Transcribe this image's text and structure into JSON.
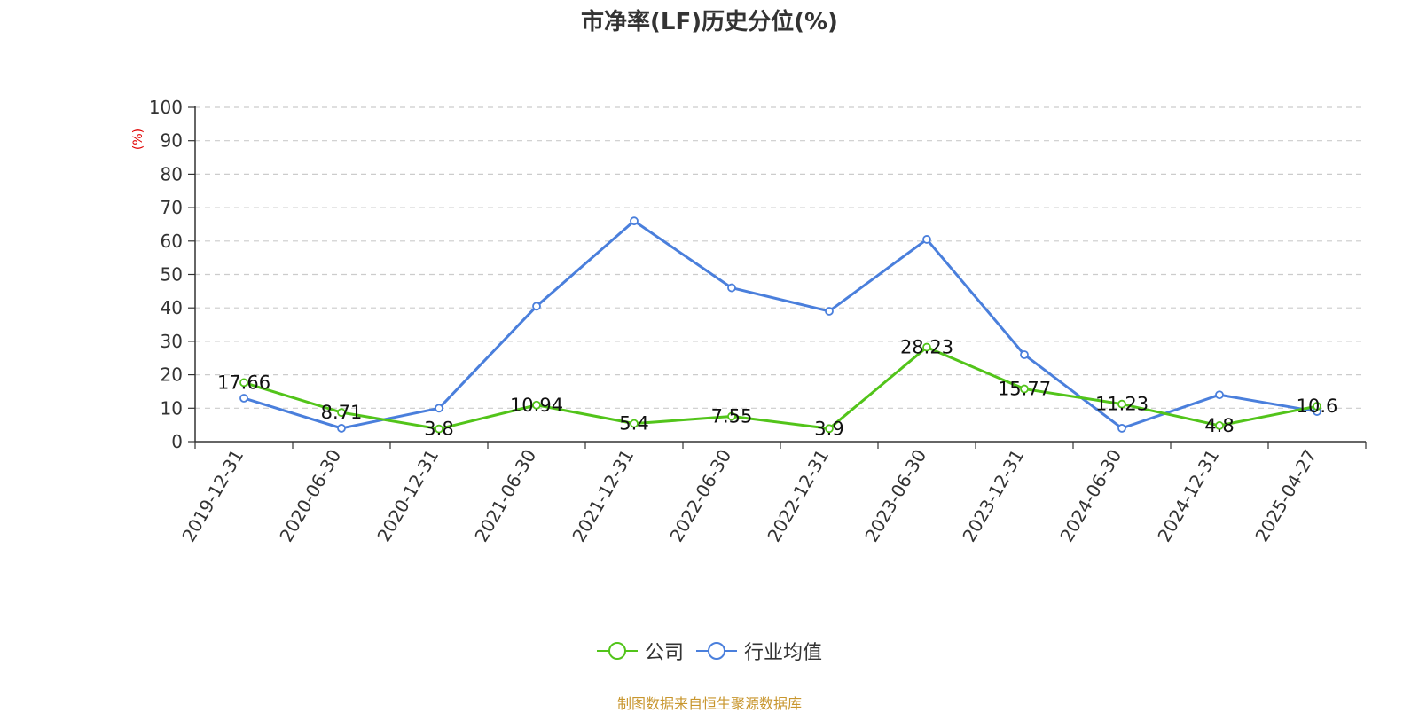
{
  "chart_data": {
    "type": "line",
    "title": "市净率(LF)历史分位(%)",
    "ylabel": "(%)",
    "xlabel": "",
    "ylim": [
      0,
      100
    ],
    "yticks": [
      0,
      10,
      20,
      30,
      40,
      50,
      60,
      70,
      80,
      90,
      100
    ],
    "grid": true,
    "legend_position": "bottom-center",
    "categories": [
      "2019-12-31",
      "2020-06-30",
      "2020-12-31",
      "2021-06-30",
      "2021-12-31",
      "2022-06-30",
      "2022-12-31",
      "2023-06-30",
      "2023-12-31",
      "2024-06-30",
      "2024-12-31",
      "2025-04-27"
    ],
    "series": [
      {
        "name": "公司",
        "color": "#52c41a",
        "values": [
          17.66,
          8.71,
          3.8,
          10.94,
          5.4,
          7.55,
          3.9,
          28.23,
          15.77,
          11.23,
          4.8,
          10.6
        ],
        "labels": [
          "17.66",
          "8.71",
          "3.8",
          "10.94",
          "5.4",
          "7.55",
          "3.9",
          "28.23",
          "15.77",
          "11.23",
          "4.8",
          "10.6"
        ]
      },
      {
        "name": "行业均值",
        "color": "#4a7fdc",
        "values": [
          13,
          4,
          10,
          40.5,
          66,
          46,
          39,
          60.5,
          26,
          4,
          14,
          9
        ]
      }
    ],
    "source": "制图数据来自恒生聚源数据库"
  }
}
